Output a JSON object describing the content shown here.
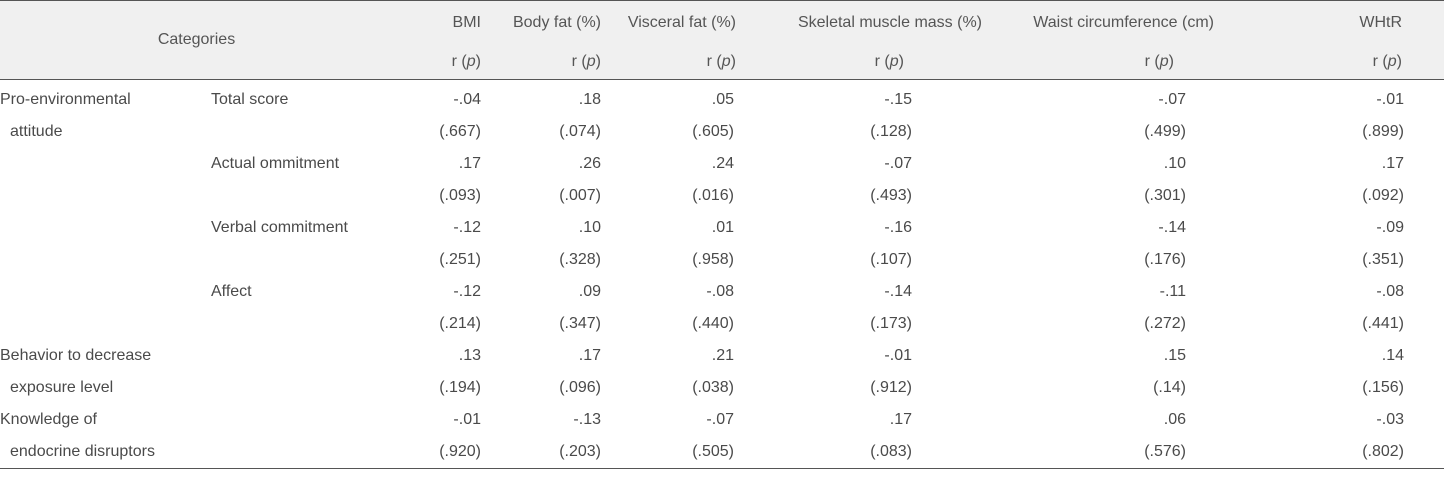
{
  "header": {
    "categories_label": "Categories",
    "columns": [
      "BMI",
      "Body fat (%)",
      "Visceral fat (%)",
      "Skeletal muscle mass (%)",
      "Waist circumference (cm)",
      "WHtR"
    ],
    "stat_prefix": "r (",
    "stat_p": "p",
    "stat_suffix": ")"
  },
  "rows": [
    {
      "cat1": "Pro-environmental",
      "cat2": "Total score",
      "vals": [
        "-.04",
        ".18",
        ".05",
        "-.15",
        "-.07",
        "-.01"
      ]
    },
    {
      "cat1": "attitude",
      "cat2": "",
      "vals": [
        "(.667)",
        "(.074)",
        "(.605)",
        "(.128)",
        "(.499)",
        "(.899)"
      ]
    },
    {
      "cat1": "",
      "cat2": "Actual ommitment",
      "vals": [
        ".17",
        ".26",
        ".24",
        "-.07",
        ".10",
        ".17"
      ]
    },
    {
      "cat1": "",
      "cat2": "",
      "vals": [
        "(.093)",
        "(.007)",
        "(.016)",
        "(.493)",
        "(.301)",
        "(.092)"
      ]
    },
    {
      "cat1": "",
      "cat2": "Verbal commitment",
      "vals": [
        "-.12",
        ".10",
        ".01",
        "-.16",
        "-.14",
        "-.09"
      ]
    },
    {
      "cat1": "",
      "cat2": "",
      "vals": [
        "(.251)",
        "(.328)",
        "(.958)",
        "(.107)",
        "(.176)",
        "(.351)"
      ]
    },
    {
      "cat1": "",
      "cat2": "Affect",
      "vals": [
        "-.12",
        ".09",
        "-.08",
        "-.14",
        "-.11",
        "-.08"
      ]
    },
    {
      "cat1": "",
      "cat2": "",
      "vals": [
        "(.214)",
        "(.347)",
        "(.440)",
        "(.173)",
        "(.272)",
        "(.441)"
      ]
    },
    {
      "cat1": "Behavior to decrease",
      "cat2": "",
      "vals": [
        ".13",
        ".17",
        ".21",
        "-.01",
        ".15",
        ".14"
      ]
    },
    {
      "cat1": "exposure level",
      "cat2": "",
      "vals": [
        "(.194)",
        "(.096)",
        "(.038)",
        "(.912)",
        "(.14)",
        "(.156)"
      ]
    },
    {
      "cat1": "Knowledge of",
      "cat2": "",
      "vals": [
        "-.01",
        "-.13",
        "-.07",
        ".17",
        ".06",
        "-.03"
      ]
    },
    {
      "cat1": "endocrine disruptors",
      "cat2": "",
      "vals": [
        "(.920)",
        "(.203)",
        "(.505)",
        "(.083)",
        "(.576)",
        "(.802)"
      ]
    }
  ]
}
